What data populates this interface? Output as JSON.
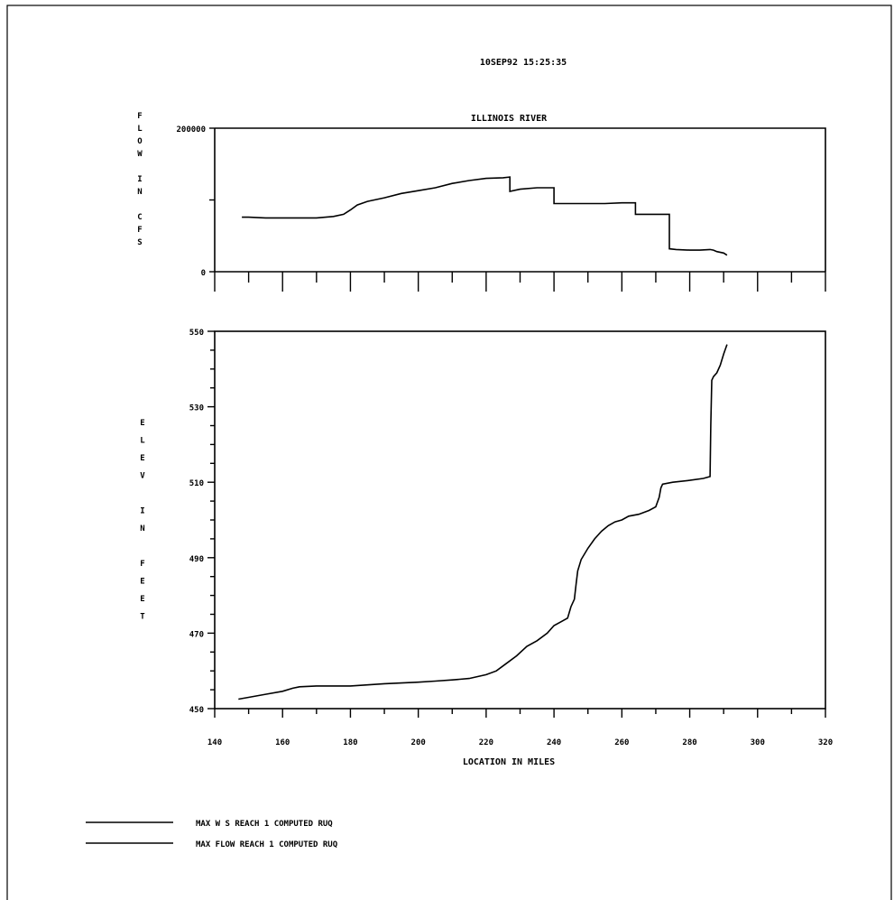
{
  "header": {
    "timestamp": "10SEP92   15:25:35"
  },
  "chart_data": [
    {
      "type": "line",
      "title": "ILLINOIS RIVER",
      "ylabel": "FLOW IN CFS",
      "xlabel": "",
      "xlim": [
        140,
        320
      ],
      "ylim": [
        0,
        200000
      ],
      "y_tick_labels": [
        "200000",
        "0"
      ],
      "grid": false,
      "series": [
        {
          "name": "MAX FLOW REACH 1 COMPUTED RUQ",
          "x": [
            148,
            150,
            155,
            160,
            165,
            170,
            175,
            178,
            180,
            182,
            185,
            190,
            195,
            200,
            205,
            210,
            215,
            220,
            225,
            227,
            227,
            230,
            235,
            240,
            240,
            245,
            250,
            255,
            260,
            263,
            264,
            264,
            270,
            274,
            274,
            276,
            280,
            283,
            286,
            287,
            288,
            290,
            291
          ],
          "y": [
            76000,
            76000,
            75000,
            75000,
            75000,
            75000,
            77000,
            80000,
            86000,
            93000,
            98000,
            103000,
            109000,
            113000,
            117000,
            123000,
            127000,
            130000,
            131000,
            132000,
            112000,
            115000,
            117000,
            117000,
            95000,
            95000,
            95000,
            95000,
            96000,
            96000,
            96000,
            80000,
            80000,
            80000,
            32000,
            31000,
            30000,
            30000,
            31000,
            30000,
            28000,
            26000,
            23000
          ]
        }
      ]
    },
    {
      "type": "line",
      "title": "",
      "ylabel": "ELEV IN FEET",
      "xlabel": "LOCATION IN MILES",
      "xlim": [
        140,
        320
      ],
      "ylim": [
        450,
        550
      ],
      "x_tick_labels": [
        "140",
        "160",
        "180",
        "200",
        "220",
        "240",
        "260",
        "280",
        "300",
        "320"
      ],
      "y_tick_labels": [
        "550",
        "530",
        "510",
        "490",
        "470",
        "450"
      ],
      "grid": false,
      "series": [
        {
          "name": "MAX W S REACH 1 COMPUTED RUQ",
          "x": [
            147,
            150,
            155,
            160,
            163,
            165,
            170,
            175,
            180,
            185,
            190,
            195,
            200,
            205,
            210,
            215,
            220,
            223,
            226,
            229,
            232,
            235,
            238,
            240,
            242,
            244,
            245,
            246,
            246.5,
            247,
            248,
            250,
            252,
            254,
            256,
            258,
            260,
            262,
            265,
            268,
            270,
            271,
            271.5,
            272,
            275,
            280,
            284,
            286,
            286.2,
            286.5,
            287,
            288,
            289,
            290,
            291
          ],
          "y": [
            452.5,
            453.0,
            453.8,
            454.6,
            455.4,
            455.8,
            456.0,
            456.0,
            456.0,
            456.3,
            456.6,
            456.8,
            457.0,
            457.3,
            457.6,
            458.0,
            459.0,
            460.0,
            462.0,
            464.0,
            466.5,
            468.0,
            470.0,
            472.0,
            473.0,
            474.0,
            477.0,
            479.0,
            483.0,
            486.5,
            489.5,
            492.5,
            495.0,
            497.0,
            498.5,
            499.5,
            500.0,
            501.0,
            501.5,
            502.5,
            503.5,
            506.0,
            508.5,
            509.5,
            510.0,
            510.5,
            511.0,
            511.5,
            525.0,
            537.0,
            538.0,
            539.0,
            541.0,
            544.0,
            546.5
          ]
        }
      ]
    }
  ],
  "legend": [
    {
      "label": "MAX W S REACH   1 COMPUTED RUQ"
    },
    {
      "label": "MAX FLOW REACH   1 COMPUTED RUQ"
    }
  ]
}
